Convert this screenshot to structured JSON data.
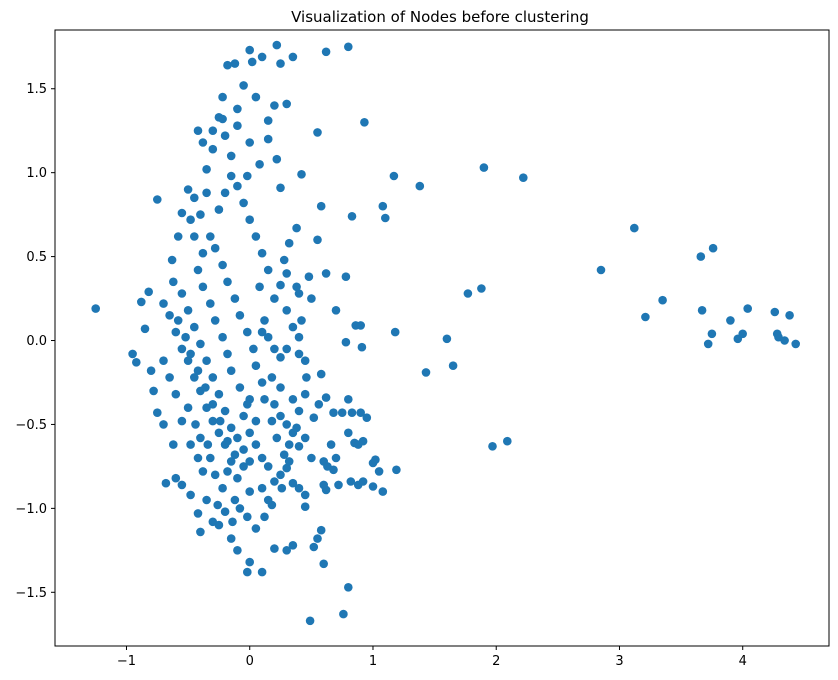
{
  "chart_data": {
    "type": "scatter",
    "title": "Visualization of Nodes before clustering",
    "xlabel": "",
    "ylabel": "",
    "xlim": [
      -1.58,
      4.7
    ],
    "ylim": [
      -1.82,
      1.85
    ],
    "xticks": [
      -1,
      0,
      1,
      2,
      3,
      4
    ],
    "xtick_labels": [
      "−1",
      "0",
      "1",
      "2",
      "3",
      "4"
    ],
    "yticks": [
      -1.5,
      -1.0,
      -0.5,
      0.0,
      0.5,
      1.0,
      1.5
    ],
    "ytick_labels": [
      "−1.5",
      "−1.0",
      "−0.5",
      "0.0",
      "0.5",
      "1.0",
      "1.5"
    ],
    "grid": false,
    "marker_color": "#1f77b4",
    "points": [
      [
        -1.25,
        0.19
      ],
      [
        -0.75,
        0.84
      ],
      [
        -0.82,
        0.29
      ],
      [
        -0.88,
        0.23
      ],
      [
        -0.85,
        0.07
      ],
      [
        -0.95,
        -0.08
      ],
      [
        -0.92,
        -0.13
      ],
      [
        -0.8,
        -0.18
      ],
      [
        -0.78,
        -0.3
      ],
      [
        -0.75,
        -0.43
      ],
      [
        -0.7,
        -0.5
      ],
      [
        -0.68,
        -0.85
      ],
      [
        -0.62,
        -0.62
      ],
      [
        -0.6,
        -0.82
      ],
      [
        -0.63,
        0.48
      ],
      [
        -0.58,
        0.62
      ],
      [
        -0.55,
        0.76
      ],
      [
        -0.5,
        0.9
      ],
      [
        -0.48,
        0.72
      ],
      [
        -0.45,
        0.85
      ],
      [
        -0.42,
        1.25
      ],
      [
        -0.35,
        1.02
      ],
      [
        -0.3,
        1.14
      ],
      [
        -0.25,
        1.33
      ],
      [
        -0.22,
        1.45
      ],
      [
        -0.2,
        1.22
      ],
      [
        -0.15,
        1.1
      ],
      [
        -0.1,
        1.38
      ],
      [
        -0.05,
        1.52
      ],
      [
        0.0,
        1.73
      ],
      [
        0.02,
        1.66
      ],
      [
        0.05,
        1.45
      ],
      [
        0.1,
        1.69
      ],
      [
        0.15,
        1.31
      ],
      [
        0.2,
        1.4
      ],
      [
        0.22,
        1.76
      ],
      [
        0.25,
        1.65
      ],
      [
        0.3,
        1.41
      ],
      [
        0.35,
        1.69
      ],
      [
        -0.18,
        1.64
      ],
      [
        -0.12,
        1.65
      ],
      [
        0.8,
        1.75
      ],
      [
        0.62,
        1.72
      ],
      [
        0.93,
        1.3
      ],
      [
        0.55,
        1.24
      ],
      [
        0.42,
        0.99
      ],
      [
        0.25,
        0.91
      ],
      [
        0.58,
        0.8
      ],
      [
        0.83,
        0.74
      ],
      [
        1.08,
        0.8
      ],
      [
        1.1,
        0.73
      ],
      [
        1.17,
        0.98
      ],
      [
        1.38,
        0.92
      ],
      [
        1.9,
        1.03
      ],
      [
        2.22,
        0.97
      ],
      [
        0.62,
        0.4
      ],
      [
        0.55,
        0.6
      ],
      [
        0.38,
        0.67
      ],
      [
        0.48,
        0.38
      ],
      [
        0.78,
        0.38
      ],
      [
        0.7,
        0.18
      ],
      [
        0.86,
        0.09
      ],
      [
        0.9,
        0.09
      ],
      [
        0.91,
        -0.04
      ],
      [
        0.78,
        -0.01
      ],
      [
        1.18,
        0.05
      ],
      [
        1.43,
        -0.19
      ],
      [
        1.6,
        0.01
      ],
      [
        1.65,
        -0.15
      ],
      [
        1.77,
        0.28
      ],
      [
        1.88,
        0.31
      ],
      [
        1.97,
        -0.63
      ],
      [
        2.09,
        -0.6
      ],
      [
        2.85,
        0.42
      ],
      [
        3.12,
        0.67
      ],
      [
        3.21,
        0.14
      ],
      [
        3.35,
        0.24
      ],
      [
        3.66,
        0.5
      ],
      [
        3.67,
        0.18
      ],
      [
        3.72,
        -0.02
      ],
      [
        3.75,
        0.04
      ],
      [
        3.76,
        0.55
      ],
      [
        3.9,
        0.12
      ],
      [
        3.96,
        0.01
      ],
      [
        4.0,
        0.04
      ],
      [
        4.04,
        0.19
      ],
      [
        4.26,
        0.17
      ],
      [
        4.28,
        0.04
      ],
      [
        4.29,
        0.02
      ],
      [
        4.34,
        0.0
      ],
      [
        4.38,
        0.15
      ],
      [
        4.43,
        -0.02
      ],
      [
        0.62,
        -0.34
      ],
      [
        0.58,
        -0.2
      ],
      [
        0.68,
        -0.43
      ],
      [
        0.75,
        -0.43
      ],
      [
        0.8,
        -0.35
      ],
      [
        0.83,
        -0.43
      ],
      [
        0.9,
        -0.43
      ],
      [
        0.95,
        -0.46
      ],
      [
        0.8,
        -0.55
      ],
      [
        0.85,
        -0.61
      ],
      [
        0.88,
        -0.62
      ],
      [
        0.92,
        -0.6
      ],
      [
        0.6,
        -0.72
      ],
      [
        0.63,
        -0.75
      ],
      [
        0.68,
        -0.77
      ],
      [
        0.72,
        -0.86
      ],
      [
        0.82,
        -0.84
      ],
      [
        0.88,
        -0.86
      ],
      [
        0.92,
        -0.84
      ],
      [
        1.0,
        -0.73
      ],
      [
        1.02,
        -0.71
      ],
      [
        1.05,
        -0.78
      ],
      [
        1.0,
        -0.87
      ],
      [
        1.08,
        -0.9
      ],
      [
        1.19,
        -0.77
      ],
      [
        0.6,
        -0.86
      ],
      [
        0.62,
        -0.89
      ],
      [
        0.5,
        -0.7
      ],
      [
        0.45,
        -0.92
      ],
      [
        0.45,
        -0.99
      ],
      [
        0.58,
        -1.13
      ],
      [
        0.55,
        -1.18
      ],
      [
        0.6,
        -1.33
      ],
      [
        0.52,
        -1.23
      ],
      [
        0.8,
        -1.47
      ],
      [
        0.76,
        -1.63
      ],
      [
        0.49,
        -1.67
      ],
      [
        0.3,
        -1.25
      ],
      [
        0.35,
        -1.22
      ],
      [
        0.2,
        -1.24
      ],
      [
        0.1,
        -1.38
      ],
      [
        0.0,
        -1.32
      ],
      [
        -0.02,
        -1.38
      ],
      [
        -0.1,
        -1.25
      ],
      [
        -0.15,
        -1.18
      ],
      [
        -0.25,
        -1.1
      ],
      [
        -0.3,
        -1.08
      ],
      [
        -0.4,
        -1.14
      ],
      [
        -0.42,
        -1.03
      ],
      [
        -0.48,
        -0.92
      ],
      [
        -0.55,
        -0.86
      ],
      [
        -0.35,
        -0.95
      ],
      [
        -0.12,
        -0.95
      ],
      [
        0.0,
        -0.9
      ],
      [
        0.1,
        -0.88
      ],
      [
        0.15,
        -0.95
      ],
      [
        0.2,
        -0.84
      ],
      [
        0.25,
        -0.8
      ],
      [
        0.3,
        -0.76
      ],
      [
        0.35,
        -0.85
      ],
      [
        0.4,
        -0.88
      ],
      [
        0.4,
        -0.63
      ],
      [
        0.45,
        -0.58
      ],
      [
        0.35,
        -0.55
      ],
      [
        0.3,
        -0.5
      ],
      [
        0.25,
        -0.45
      ],
      [
        0.2,
        -0.38
      ],
      [
        0.35,
        -0.35
      ],
      [
        0.4,
        -0.42
      ],
      [
        0.45,
        -0.32
      ],
      [
        0.25,
        -0.1
      ],
      [
        0.3,
        -0.05
      ],
      [
        0.4,
        -0.08
      ],
      [
        0.45,
        -0.12
      ],
      [
        0.4,
        0.02
      ],
      [
        0.35,
        0.08
      ],
      [
        0.3,
        0.18
      ],
      [
        0.2,
        0.25
      ],
      [
        0.25,
        0.33
      ],
      [
        0.3,
        0.4
      ],
      [
        0.4,
        0.28
      ],
      [
        0.5,
        0.25
      ],
      [
        0.1,
        0.05
      ],
      [
        0.15,
        0.02
      ],
      [
        0.2,
        -0.05
      ],
      [
        0.05,
        -0.15
      ],
      [
        0.1,
        -0.25
      ],
      [
        0.0,
        -0.35
      ],
      [
        -0.05,
        -0.45
      ],
      [
        0.0,
        -0.55
      ],
      [
        0.05,
        -0.62
      ],
      [
        0.1,
        -0.7
      ],
      [
        0.15,
        -0.75
      ],
      [
        -0.05,
        -0.75
      ],
      [
        -0.1,
        -0.82
      ],
      [
        -0.15,
        -0.72
      ],
      [
        -0.2,
        -0.62
      ],
      [
        -0.25,
        -0.55
      ],
      [
        -0.3,
        -0.48
      ],
      [
        -0.35,
        -0.4
      ],
      [
        -0.4,
        -0.3
      ],
      [
        -0.45,
        -0.22
      ],
      [
        -0.5,
        -0.12
      ],
      [
        -0.55,
        -0.05
      ],
      [
        -0.6,
        0.05
      ],
      [
        -0.65,
        0.15
      ],
      [
        -0.7,
        0.22
      ],
      [
        -0.62,
        0.35
      ],
      [
        -0.55,
        0.28
      ],
      [
        -0.5,
        0.18
      ],
      [
        -0.45,
        0.08
      ],
      [
        -0.4,
        -0.02
      ],
      [
        -0.35,
        -0.12
      ],
      [
        -0.3,
        -0.22
      ],
      [
        -0.25,
        -0.32
      ],
      [
        -0.2,
        -0.42
      ],
      [
        -0.15,
        -0.52
      ],
      [
        -0.1,
        -0.58
      ],
      [
        -0.05,
        -0.65
      ],
      [
        0.0,
        -0.72
      ],
      [
        -0.42,
        0.42
      ],
      [
        -0.38,
        0.52
      ],
      [
        -0.32,
        0.62
      ],
      [
        -0.28,
        0.55
      ],
      [
        -0.22,
        0.45
      ],
      [
        -0.18,
        0.35
      ],
      [
        -0.12,
        0.25
      ],
      [
        -0.08,
        0.15
      ],
      [
        -0.02,
        0.05
      ],
      [
        0.03,
        -0.05
      ],
      [
        -0.25,
        0.78
      ],
      [
        -0.2,
        0.88
      ],
      [
        -0.15,
        0.98
      ],
      [
        -0.1,
        0.92
      ],
      [
        -0.05,
        0.82
      ],
      [
        0.0,
        0.72
      ],
      [
        0.05,
        0.62
      ],
      [
        0.1,
        0.52
      ],
      [
        0.15,
        0.42
      ],
      [
        -0.35,
        0.88
      ],
      [
        -0.4,
        0.75
      ],
      [
        -0.45,
        0.62
      ],
      [
        -0.38,
        1.18
      ],
      [
        -0.3,
        1.25
      ],
      [
        -0.22,
        1.32
      ],
      [
        -0.1,
        1.28
      ],
      [
        0.0,
        1.18
      ],
      [
        0.08,
        1.05
      ],
      [
        -0.02,
        0.98
      ],
      [
        0.15,
        1.2
      ],
      [
        0.22,
        1.08
      ],
      [
        -0.5,
        -0.4
      ],
      [
        -0.55,
        -0.48
      ],
      [
        -0.6,
        -0.32
      ],
      [
        -0.65,
        -0.22
      ],
      [
        -0.7,
        -0.12
      ],
      [
        -0.48,
        -0.62
      ],
      [
        -0.42,
        -0.7
      ],
      [
        -0.38,
        -0.78
      ],
      [
        -0.32,
        -0.7
      ],
      [
        -0.28,
        -0.8
      ],
      [
        -0.22,
        -0.88
      ],
      [
        -0.18,
        -0.78
      ],
      [
        -0.12,
        -0.68
      ],
      [
        0.18,
        -0.48
      ],
      [
        0.22,
        -0.58
      ],
      [
        0.28,
        -0.68
      ],
      [
        0.32,
        -0.62
      ],
      [
        0.12,
        -0.35
      ],
      [
        0.18,
        -0.22
      ],
      [
        0.25,
        -0.28
      ],
      [
        -0.28,
        0.12
      ],
      [
        -0.32,
        0.22
      ],
      [
        -0.38,
        0.32
      ],
      [
        -0.22,
        0.02
      ],
      [
        -0.18,
        -0.08
      ],
      [
        -0.15,
        -0.18
      ],
      [
        -0.08,
        -0.28
      ],
      [
        -0.02,
        -0.38
      ],
      [
        0.05,
        -0.48
      ],
      [
        0.08,
        0.32
      ],
      [
        0.12,
        0.12
      ],
      [
        -0.58,
        0.12
      ],
      [
        -0.52,
        0.02
      ],
      [
        -0.48,
        -0.08
      ],
      [
        -0.42,
        -0.18
      ],
      [
        -0.36,
        -0.28
      ],
      [
        -0.3,
        -0.38
      ],
      [
        -0.24,
        -0.48
      ],
      [
        -0.18,
        -0.6
      ],
      [
        0.28,
        0.48
      ],
      [
        0.32,
        0.58
      ],
      [
        0.38,
        0.32
      ],
      [
        0.42,
        0.12
      ],
      [
        0.46,
        -0.22
      ],
      [
        0.38,
        -0.52
      ],
      [
        0.32,
        -0.72
      ],
      [
        0.26,
        -0.88
      ],
      [
        0.18,
        -0.98
      ],
      [
        0.12,
        -1.05
      ],
      [
        0.05,
        -1.12
      ],
      [
        -0.02,
        -1.05
      ],
      [
        -0.08,
        -1.0
      ],
      [
        -0.14,
        -1.08
      ],
      [
        -0.2,
        -1.02
      ],
      [
        -0.26,
        -0.98
      ],
      [
        -0.44,
        -0.5
      ],
      [
        -0.4,
        -0.58
      ],
      [
        -0.34,
        -0.62
      ],
      [
        0.52,
        -0.46
      ],
      [
        0.56,
        -0.38
      ],
      [
        0.66,
        -0.62
      ],
      [
        0.7,
        -0.7
      ]
    ]
  }
}
